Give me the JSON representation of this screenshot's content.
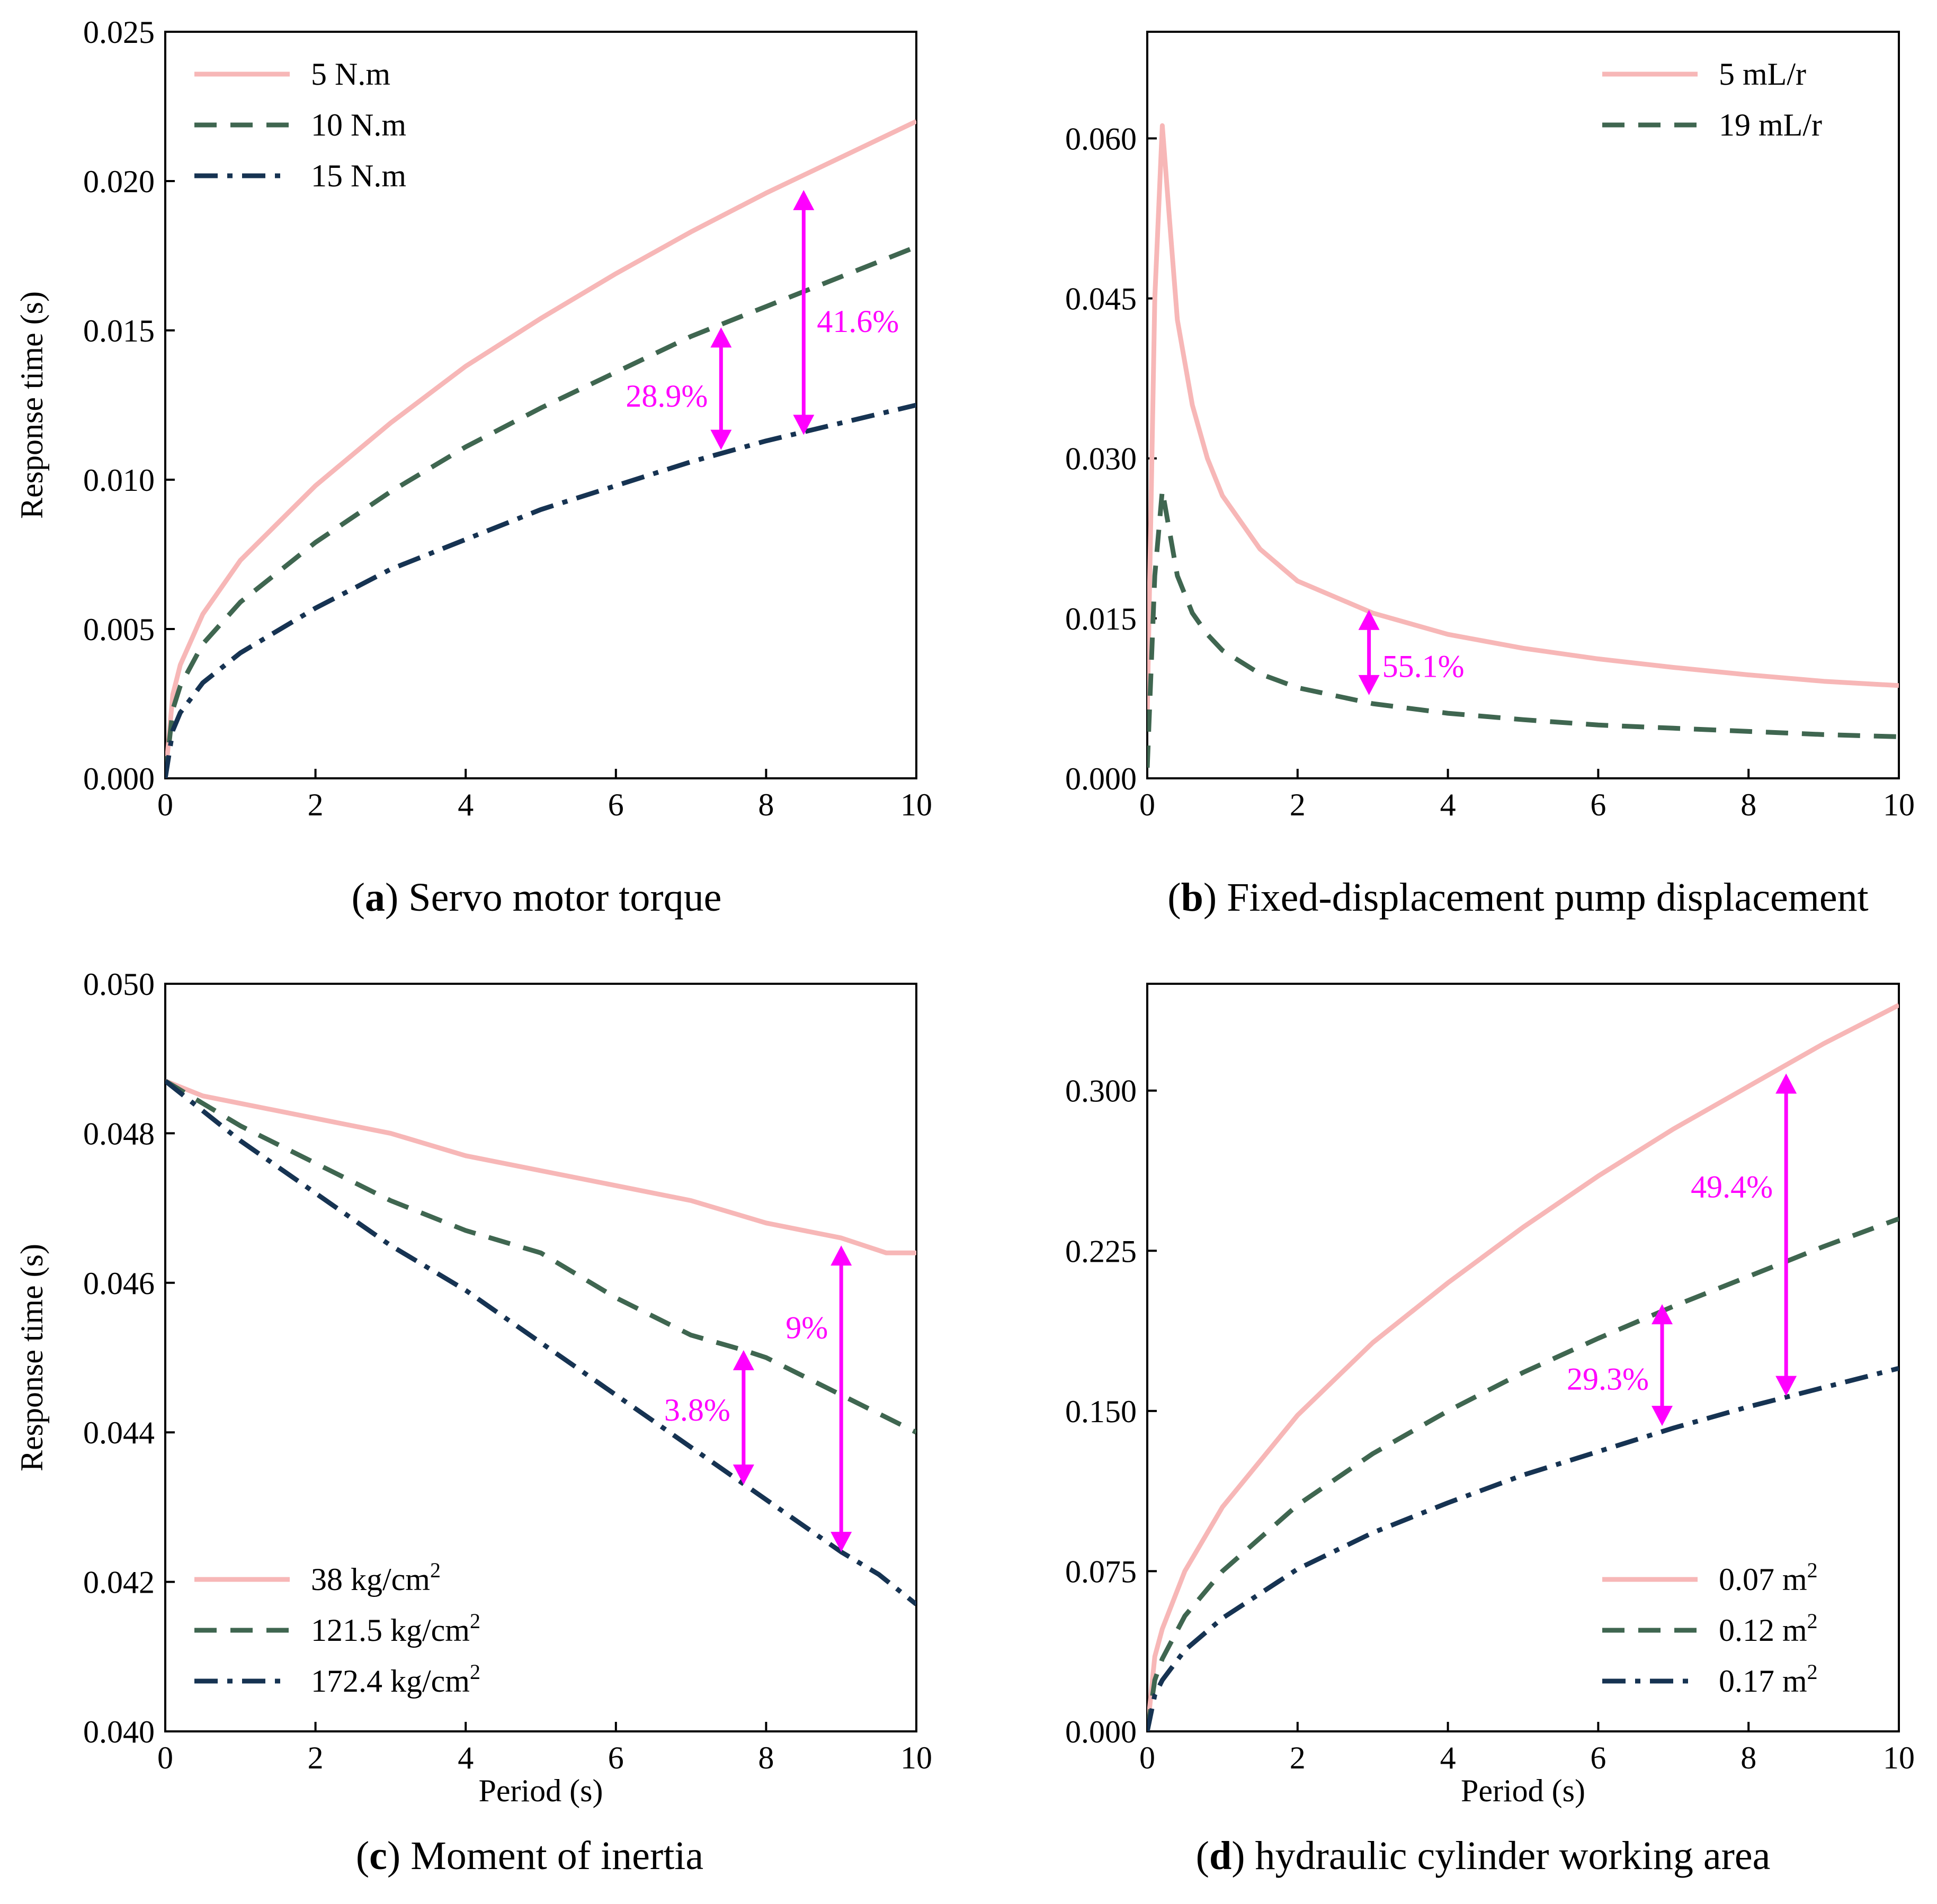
{
  "colors": {
    "series1": "#f7b7b7",
    "series2": "#3f6650",
    "series3": "#163352",
    "annotation": "#ff00ff",
    "axis": "#000000"
  },
  "chart_data": [
    {
      "id": "a",
      "type": "line",
      "caption_label": "a",
      "caption_text": " Servo motor torque",
      "ylabel": "Response time (s)",
      "xlabel": "",
      "xlim": [
        0,
        10
      ],
      "ylim": [
        0,
        0.025
      ],
      "xticks": [
        0,
        2,
        4,
        6,
        8,
        10
      ],
      "xtick_labels": [
        "0",
        "2",
        "4",
        "6",
        "8",
        "10"
      ],
      "yticks": [
        0,
        0.005,
        0.01,
        0.015,
        0.02,
        0.025
      ],
      "ytick_labels": [
        "0.000",
        "0.005",
        "0.010",
        "0.015",
        "0.020",
        "0.025"
      ],
      "legend_position": "top-left",
      "series": [
        {
          "name": "5 N.m",
          "style": "solid",
          "color": "series1",
          "x": [
            0,
            0.1,
            0.2,
            0.5,
            1,
            2,
            3,
            4,
            5,
            6,
            7,
            8,
            9,
            10
          ],
          "y": [
            0,
            0.0028,
            0.0038,
            0.0055,
            0.0073,
            0.0098,
            0.0119,
            0.0138,
            0.0154,
            0.0169,
            0.0183,
            0.0196,
            0.0208,
            0.022
          ]
        },
        {
          "name": "10 N.m",
          "style": "dashed",
          "color": "series2",
          "x": [
            0,
            0.1,
            0.2,
            0.5,
            1,
            2,
            3,
            4,
            5,
            6,
            7,
            8,
            9,
            10
          ],
          "y": [
            0,
            0.0023,
            0.0031,
            0.0045,
            0.0059,
            0.0079,
            0.0096,
            0.0111,
            0.0124,
            0.0136,
            0.0148,
            0.0158,
            0.0168,
            0.0178
          ]
        },
        {
          "name": "15 N.m",
          "style": "dashdot",
          "color": "series3",
          "x": [
            0,
            0.1,
            0.2,
            0.5,
            1,
            2,
            3,
            4,
            5,
            6,
            7,
            8,
            9,
            10
          ],
          "y": [
            0,
            0.0016,
            0.0022,
            0.0032,
            0.0042,
            0.0057,
            0.007,
            0.008,
            0.009,
            0.0098,
            0.0106,
            0.0113,
            0.0119,
            0.0125
          ]
        }
      ],
      "annotations": [
        {
          "text": "28.9%",
          "x": 7.4,
          "y_from": 0.011,
          "y_to": 0.0151,
          "label_side": "left",
          "label_y": 0.0128
        },
        {
          "text": "41.6%",
          "x": 8.5,
          "y_from": 0.0115,
          "y_to": 0.0197,
          "label_side": "right",
          "label_y": 0.0153
        }
      ]
    },
    {
      "id": "b",
      "type": "line",
      "caption_label": "b",
      "caption_text": " Fixed-displacement pump displacement",
      "ylabel": "",
      "xlabel": "",
      "xlim": [
        0,
        10
      ],
      "ylim": [
        0,
        0.07
      ],
      "xticks": [
        0,
        2,
        4,
        6,
        8,
        10
      ],
      "xtick_labels": [
        "0",
        "2",
        "4",
        "6",
        "8",
        "10"
      ],
      "yticks": [
        0,
        0.015,
        0.03,
        0.045,
        0.06
      ],
      "ytick_labels": [
        "0.000",
        "0.015",
        "0.030",
        "0.045",
        "0.060"
      ],
      "legend_position": "top-right",
      "series": [
        {
          "name": "5 mL/r",
          "style": "solid",
          "color": "series1",
          "x": [
            0,
            0.1,
            0.2,
            0.3,
            0.4,
            0.6,
            0.8,
            1,
            1.5,
            2,
            3,
            4,
            5,
            6,
            7,
            8,
            9,
            10
          ],
          "y": [
            0.006,
            0.045,
            0.0612,
            0.052,
            0.043,
            0.035,
            0.03,
            0.0265,
            0.0215,
            0.0185,
            0.0155,
            0.0135,
            0.0122,
            0.0112,
            0.0104,
            0.0097,
            0.0091,
            0.0087
          ]
        },
        {
          "name": "19 mL/r",
          "style": "dashed",
          "color": "series2",
          "x": [
            0,
            0.1,
            0.2,
            0.3,
            0.4,
            0.6,
            0.8,
            1,
            1.5,
            2,
            3,
            4,
            5,
            6,
            7,
            8,
            9,
            10
          ],
          "y": [
            0.001,
            0.019,
            0.027,
            0.023,
            0.019,
            0.0155,
            0.0135,
            0.012,
            0.0098,
            0.0085,
            0.007,
            0.0061,
            0.0055,
            0.005,
            0.0047,
            0.0044,
            0.0041,
            0.0039
          ]
        }
      ],
      "annotations": [
        {
          "text": "55.1%",
          "x": 2.95,
          "y_from": 0.0078,
          "y_to": 0.0158,
          "label_side": "right",
          "label_y": 0.0105
        }
      ]
    },
    {
      "id": "c",
      "type": "line",
      "caption_label": "c",
      "caption_text": " Moment of inertia",
      "ylabel": "Response time (s)",
      "xlabel": "Period (s)",
      "xlim": [
        0,
        10
      ],
      "ylim": [
        0.04,
        0.05
      ],
      "xticks": [
        0,
        2,
        4,
        6,
        8,
        10
      ],
      "xtick_labels": [
        "0",
        "2",
        "4",
        "6",
        "8",
        "10"
      ],
      "yticks": [
        0.04,
        0.042,
        0.044,
        0.046,
        0.048,
        0.05
      ],
      "ytick_labels": [
        "0.040",
        "0.042",
        "0.044",
        "0.046",
        "0.048",
        "0.050"
      ],
      "legend_position": "bottom-left",
      "series": [
        {
          "name": "38 kg/cm",
          "name_sup": "2",
          "style": "solid",
          "color": "series1",
          "x": [
            0,
            0.5,
            1,
            2,
            3,
            4,
            5,
            6,
            7,
            8,
            9,
            9.6,
            10
          ],
          "y": [
            0.0487,
            0.0485,
            0.0484,
            0.0482,
            0.048,
            0.0477,
            0.0475,
            0.0473,
            0.0471,
            0.0468,
            0.0466,
            0.0464,
            0.0464
          ]
        },
        {
          "name": "121.5 kg/cm",
          "name_sup": "2",
          "style": "dashed",
          "color": "series2",
          "x": [
            0,
            1,
            2,
            3,
            4,
            5,
            6,
            7,
            7.7,
            8,
            9,
            10
          ],
          "y": [
            0.0487,
            0.0481,
            0.0476,
            0.0471,
            0.0467,
            0.0464,
            0.0458,
            0.0453,
            0.0451,
            0.045,
            0.0445,
            0.044
          ]
        },
        {
          "name": "172.4 kg/cm",
          "name_sup": "2",
          "style": "dashdot",
          "color": "series3",
          "x": [
            0,
            0.5,
            1,
            2,
            3,
            4,
            5,
            6,
            7,
            8,
            9,
            9.5,
            10
          ],
          "y": [
            0.0487,
            0.0483,
            0.0479,
            0.0472,
            0.0465,
            0.0459,
            0.0452,
            0.0445,
            0.0438,
            0.0431,
            0.0424,
            0.0421,
            0.0417
          ]
        }
      ],
      "annotations": [
        {
          "text": "3.8%",
          "x": 7.7,
          "y_from": 0.0433,
          "y_to": 0.0451,
          "label_side": "left",
          "label_y": 0.0443
        },
        {
          "text": "9%",
          "x": 9.0,
          "y_from": 0.0424,
          "y_to": 0.0465,
          "label_side": "left",
          "label_y": 0.0454
        }
      ]
    },
    {
      "id": "d",
      "type": "line",
      "caption_label": "d",
      "caption_text": " hydraulic cylinder working area",
      "ylabel": "",
      "xlabel": "Period (s)",
      "xlim": [
        0,
        10
      ],
      "ylim": [
        0,
        0.35
      ],
      "xticks": [
        0,
        2,
        4,
        6,
        8,
        10
      ],
      "xtick_labels": [
        "0",
        "2",
        "4",
        "6",
        "8",
        "10"
      ],
      "yticks": [
        0,
        0.075,
        0.15,
        0.225,
        0.3
      ],
      "ytick_labels": [
        "0.000",
        "0.075",
        "0.150",
        "0.225",
        "0.300"
      ],
      "legend_position": "bottom-right",
      "series": [
        {
          "name": "0.07 m",
          "name_sup": "2",
          "style": "solid",
          "color": "series1",
          "x": [
            0,
            0.1,
            0.2,
            0.5,
            1,
            2,
            3,
            4,
            5,
            6,
            7,
            8,
            9,
            10
          ],
          "y": [
            0,
            0.035,
            0.048,
            0.075,
            0.105,
            0.148,
            0.182,
            0.21,
            0.236,
            0.26,
            0.282,
            0.302,
            0.322,
            0.34
          ]
        },
        {
          "name": "0.12 m",
          "name_sup": "2",
          "style": "dashed",
          "color": "series2",
          "x": [
            0,
            0.1,
            0.2,
            0.5,
            1,
            2,
            3,
            4,
            5,
            6,
            7,
            8,
            9,
            10
          ],
          "y": [
            0,
            0.024,
            0.034,
            0.054,
            0.075,
            0.106,
            0.13,
            0.15,
            0.168,
            0.184,
            0.199,
            0.213,
            0.227,
            0.24
          ]
        },
        {
          "name": "0.17 m",
          "name_sup": "2",
          "style": "dashdot",
          "color": "series3",
          "x": [
            0,
            0.1,
            0.2,
            0.5,
            1,
            2,
            3,
            4,
            5,
            6,
            7,
            8,
            9,
            10
          ],
          "y": [
            0,
            0.017,
            0.024,
            0.038,
            0.053,
            0.076,
            0.093,
            0.107,
            0.12,
            0.131,
            0.142,
            0.152,
            0.161,
            0.17
          ]
        }
      ],
      "annotations": [
        {
          "text": "29.3%",
          "x": 6.85,
          "y_from": 0.143,
          "y_to": 0.2,
          "label_side": "left",
          "label_y": 0.165
        },
        {
          "text": "49.4%",
          "x": 8.5,
          "y_from": 0.157,
          "y_to": 0.308,
          "label_side": "left",
          "label_y": 0.255
        }
      ]
    }
  ]
}
